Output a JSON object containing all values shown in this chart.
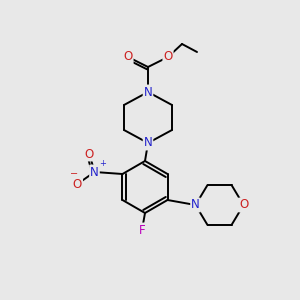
{
  "background_color": "#e8e8e8",
  "bond_color": "#000000",
  "atom_colors": {
    "N": "#2222cc",
    "O": "#cc2222",
    "F": "#bb00bb",
    "C": "#000000"
  },
  "font_size_atom": 8.5,
  "fig_size": [
    3.0,
    3.0
  ],
  "dpi": 100
}
